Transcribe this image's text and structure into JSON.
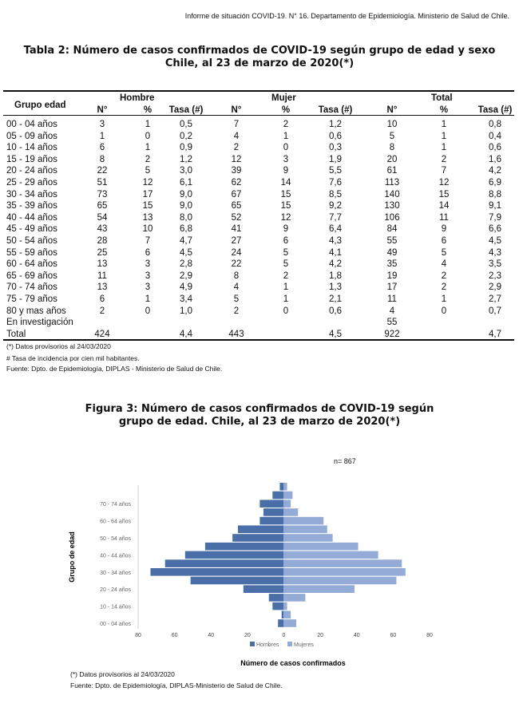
{
  "header": "Informe de situación COVID-19. N° 16. Departamento de Epidemiología. Ministerio de Salud de Chile.",
  "table": {
    "title_line1": "Tabla 2:  Número de casos confirmados de COVID-19 según grupo de edad y sexo",
    "title_line2": "Chile, al 23 de marzo de 2020(*)",
    "group_header": "Grupo edad",
    "section_headers": [
      "Hombre",
      "Mujer",
      "Total"
    ],
    "sub_headers": [
      "N°",
      "%",
      "Tasa (#)",
      "N°",
      "%",
      "Tasa (#)",
      "N°",
      "%",
      "Tasa (#)"
    ],
    "rows": [
      [
        "00 - 04 años",
        "3",
        "1",
        "0,5",
        "7",
        "2",
        "1,2",
        "10",
        "1",
        "0,8"
      ],
      [
        "05 - 09 años",
        "1",
        "0",
        "0,2",
        "4",
        "1",
        "0,6",
        "5",
        "1",
        "0,4"
      ],
      [
        "10 - 14 años",
        "6",
        "1",
        "0,9",
        "2",
        "0",
        "0,3",
        "8",
        "1",
        "0,6"
      ],
      [
        "15 - 19 años",
        "8",
        "2",
        "1,2",
        "12",
        "3",
        "1,9",
        "20",
        "2",
        "1,6"
      ],
      [
        "20 - 24 años",
        "22",
        "5",
        "3,0",
        "39",
        "9",
        "5,5",
        "61",
        "7",
        "4,2"
      ],
      [
        "25 - 29 años",
        "51",
        "12",
        "6,1",
        "62",
        "14",
        "7,6",
        "113",
        "12",
        "6,9"
      ],
      [
        "30 - 34 años",
        "73",
        "17",
        "9,0",
        "67",
        "15",
        "8,5",
        "140",
        "15",
        "8,8"
      ],
      [
        "35 - 39 años",
        "65",
        "15",
        "9,0",
        "65",
        "15",
        "9,2",
        "130",
        "14",
        "9,1"
      ],
      [
        "40 - 44 años",
        "54",
        "13",
        "8,0",
        "52",
        "12",
        "7,7",
        "106",
        "11",
        "7,9"
      ],
      [
        "45 - 49 años",
        "43",
        "10",
        "6,8",
        "41",
        "9",
        "6,4",
        "84",
        "9",
        "6,6"
      ],
      [
        "50 - 54 años",
        "28",
        "7",
        "4,7",
        "27",
        "6",
        "4,3",
        "55",
        "6",
        "4,5"
      ],
      [
        "55 - 59 años",
        "25",
        "6",
        "4,5",
        "24",
        "5",
        "4,1",
        "49",
        "5",
        "4,3"
      ],
      [
        "60 - 64 años",
        "13",
        "3",
        "2,8",
        "22",
        "5",
        "4,2",
        "35",
        "4",
        "3,5"
      ],
      [
        "65 - 69 años",
        "11",
        "3",
        "2,9",
        "8",
        "2",
        "1,8",
        "19",
        "2",
        "2,3"
      ],
      [
        "70 - 74 años",
        "13",
        "3",
        "4,9",
        "4",
        "1",
        "1,3",
        "17",
        "2",
        "2,9"
      ],
      [
        "75 - 79 años",
        "6",
        "1",
        "3,4",
        "5",
        "1",
        "2,1",
        "11",
        "1",
        "2,7"
      ],
      [
        "80 y mas años",
        "2",
        "0",
        "1,0",
        "2",
        "0",
        "0,6",
        "4",
        "0",
        "0,7"
      ],
      [
        "En investigación",
        "",
        "",
        "",
        "",
        "",
        "",
        "55",
        "",
        ""
      ],
      [
        "Total",
        "424",
        "",
        "4,4",
        "443",
        "",
        "4,5",
        "922",
        "",
        "4,7"
      ]
    ],
    "footnotes": [
      "(*) Datos provisorios al 24/03/2020",
      "# Tasa de incidencia por cien mil habitantes.",
      "Fuente: Dpto. de Epidemiología, DIPLAS - Ministerio de Salud de Chile."
    ]
  },
  "figure": {
    "title_line1": "Figura 3:  Número de casos confirmados de COVID-19 según",
    "title_line2": "grupo de edad. Chile, al 23 de marzo de 2020(*)",
    "n_label": "n=",
    "n_value": "867",
    "footnotes": [
      "(*) Datos provisorios al 24/03/2020",
      "Fuente: Dpto. de Epidemiología, DIPLAS-Ministerio de Salud de Chile."
    ]
  },
  "chart_data": {
    "type": "bar",
    "orientation": "horizontal-pyramid",
    "categories": [
      "00 - 04 años",
      "05 - 09 años",
      "10 - 14 años",
      "15 - 19 años",
      "20 - 24 años",
      "25 - 29 años",
      "30 - 34 años",
      "35 - 39 años",
      "40 - 44 años",
      "45 - 49 años",
      "50 - 54 años",
      "55 - 59 años",
      "60 - 64 años",
      "65 - 69 años",
      "70 - 74 años",
      "75 - 79 años",
      "80 y mas años"
    ],
    "tick_labels": [
      "00 - 04 años",
      "10 - 14 años",
      "20 - 24 años",
      "30 - 34 años",
      "40 - 44 años",
      "50 - 54 años",
      "60 - 64 años",
      "70 - 74 años"
    ],
    "series": [
      {
        "name": "Hombres",
        "color": "#4a6ea8",
        "values": [
          3,
          1,
          6,
          8,
          22,
          51,
          73,
          65,
          54,
          43,
          28,
          25,
          13,
          11,
          13,
          6,
          2
        ]
      },
      {
        "name": "Mujeres",
        "color": "#93abd6",
        "values": [
          7,
          4,
          2,
          12,
          39,
          62,
          67,
          65,
          52,
          41,
          27,
          24,
          22,
          8,
          4,
          5,
          2
        ]
      }
    ],
    "x_ticks": [
      "80",
      "60",
      "40",
      "20",
      "0",
      "20",
      "40",
      "60",
      "80"
    ],
    "xlim": [
      -80,
      80
    ],
    "xlabel": "Número de casos confirmados",
    "ylabel": "Grupo de edad",
    "legend_position": "bottom"
  }
}
